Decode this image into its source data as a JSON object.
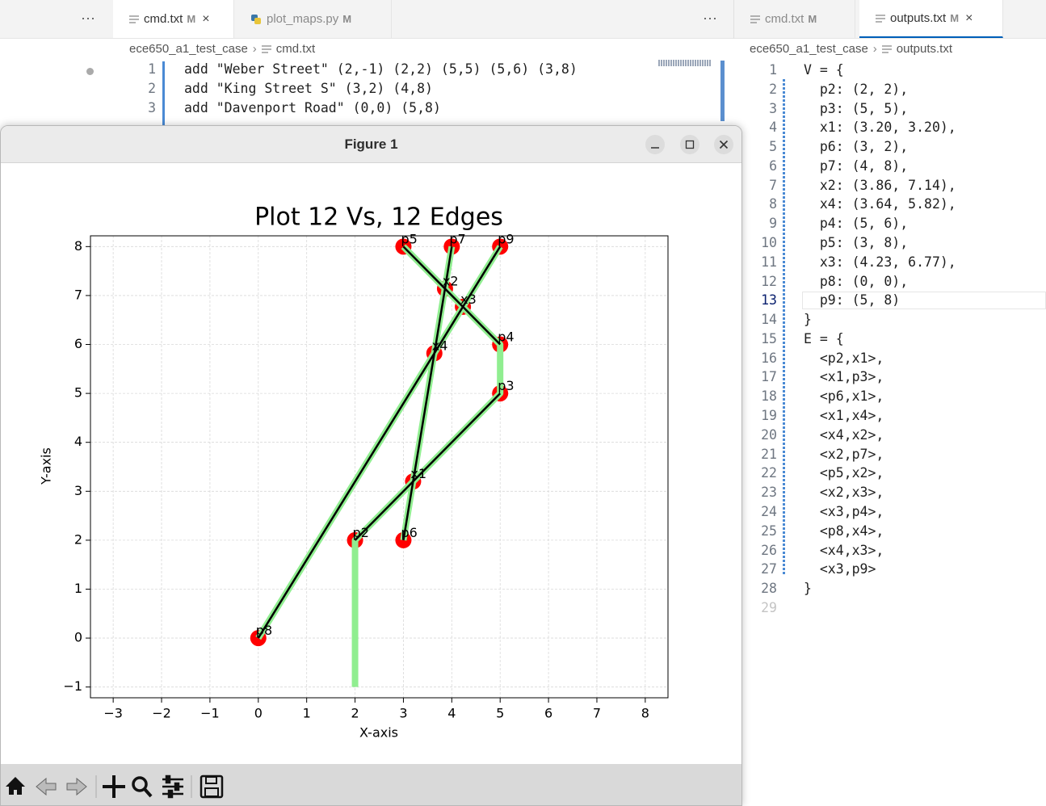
{
  "sidebar_more": "···",
  "left_editor": {
    "more": "···",
    "tabs": [
      {
        "name": "cmd.txt",
        "status": "M"
      },
      {
        "name": "plot_maps.py",
        "status": "M"
      }
    ],
    "breadcrumbs": [
      "ece650_a1_test_case",
      "cmd.txt"
    ],
    "lines": [
      {
        "number": 1,
        "text": "add \"Weber Street\" (2,-1) (2,2) (5,5) (5,6) (3,8)"
      },
      {
        "number": 2,
        "text": "add \"King Street S\" (3,2) (4,8)"
      },
      {
        "number": 3,
        "text": "add \"Davenport Road\" (0,0) (5,8)"
      }
    ]
  },
  "right_editor": {
    "tabs": [
      {
        "name": "cmd.txt",
        "status": "M"
      },
      {
        "name": "outputs.txt",
        "status": "M"
      }
    ],
    "breadcrumbs": [
      "ece650_a1_test_case",
      "outputs.txt"
    ],
    "lines": [
      {
        "number": 1,
        "text": "V = {"
      },
      {
        "number": 2,
        "text": "  p2: (2, 2),"
      },
      {
        "number": 3,
        "text": "  p3: (5, 5),"
      },
      {
        "number": 4,
        "text": "  x1: (3.20, 3.20),"
      },
      {
        "number": 5,
        "text": "  p6: (3, 2),"
      },
      {
        "number": 6,
        "text": "  p7: (4, 8),"
      },
      {
        "number": 7,
        "text": "  x2: (3.86, 7.14),"
      },
      {
        "number": 8,
        "text": "  x4: (3.64, 5.82),"
      },
      {
        "number": 9,
        "text": "  p4: (5, 6),"
      },
      {
        "number": 10,
        "text": "  p5: (3, 8),"
      },
      {
        "number": 11,
        "text": "  x3: (4.23, 6.77),"
      },
      {
        "number": 12,
        "text": "  p8: (0, 0),"
      },
      {
        "number": 13,
        "text": "  p9: (5, 8)"
      },
      {
        "number": 14,
        "text": "}"
      },
      {
        "number": 15,
        "text": "E = {"
      },
      {
        "number": 16,
        "text": "  <p2,x1>,"
      },
      {
        "number": 17,
        "text": "  <x1,p3>,"
      },
      {
        "number": 18,
        "text": "  <p6,x1>,"
      },
      {
        "number": 19,
        "text": "  <x1,x4>,"
      },
      {
        "number": 20,
        "text": "  <x4,x2>,"
      },
      {
        "number": 21,
        "text": "  <x2,p7>,"
      },
      {
        "number": 22,
        "text": "  <p5,x2>,"
      },
      {
        "number": 23,
        "text": "  <x2,x3>,"
      },
      {
        "number": 24,
        "text": "  <x3,p4>,"
      },
      {
        "number": 25,
        "text": "  <p8,x4>,"
      },
      {
        "number": 26,
        "text": "  <x4,x3>,"
      },
      {
        "number": 27,
        "text": "  <x3,p9>"
      },
      {
        "number": 28,
        "text": "}"
      },
      {
        "number": 29
      }
    ]
  },
  "figure_window": {
    "title": "Figure 1"
  },
  "chart_data": {
    "type": "scatter",
    "title": "Plot 12 Vs, 12 Edges",
    "x_label": "X-axis",
    "y_label": "Y-axis",
    "xlim": [
      -3.47,
      8.47
    ],
    "ylim": [
      -1.22,
      8.22
    ],
    "xticks": [
      {
        "value": -3,
        "label": "−3"
      },
      {
        "value": -2,
        "label": "−2"
      },
      {
        "value": -1,
        "label": "−1"
      },
      0,
      1,
      2,
      3,
      4,
      5,
      6,
      7,
      8
    ],
    "yticks": [
      {
        "value": -1,
        "label": "−1"
      },
      0,
      1,
      2,
      3,
      4,
      5,
      6,
      7,
      8
    ],
    "grid": true,
    "points": {
      "color": "#ff0000",
      "labels": [
        "p2",
        "p3",
        "x1",
        "p6",
        "p7",
        "x2",
        "x4",
        "p4",
        "p5",
        "x3",
        "p8",
        "p9"
      ],
      "x": [
        2,
        5,
        3.2,
        3,
        4,
        3.86,
        3.64,
        5,
        3,
        4.23,
        0,
        5
      ],
      "y": [
        2,
        5,
        3.2,
        2,
        8,
        7.14,
        5.82,
        6,
        8,
        6.77,
        0,
        8
      ]
    },
    "streets": {
      "color": "#90ee90",
      "lines": [
        {
          "x": [
            2,
            2,
            5,
            5,
            3
          ],
          "y": [
            -1,
            2,
            5,
            6,
            8
          ]
        },
        {
          "x": [
            3,
            4
          ],
          "y": [
            2,
            8
          ]
        },
        {
          "x": [
            0,
            5
          ],
          "y": [
            0,
            8
          ]
        }
      ]
    },
    "edges": {
      "color": "#000000",
      "lines": [
        {
          "x": [
            2,
            3.2,
            5
          ],
          "y": [
            2,
            3.2,
            5
          ]
        },
        {
          "x": [
            5,
            4.23,
            3.86,
            3
          ],
          "y": [
            6,
            6.77,
            7.14,
            8
          ]
        },
        {
          "x": [
            3,
            3.2,
            3.64,
            3.86,
            4
          ],
          "y": [
            2,
            3.2,
            5.82,
            7.14,
            8
          ]
        },
        {
          "x": [
            0,
            3.64,
            4.23,
            5
          ],
          "y": [
            0,
            5.82,
            6.77,
            8
          ]
        }
      ]
    }
  }
}
